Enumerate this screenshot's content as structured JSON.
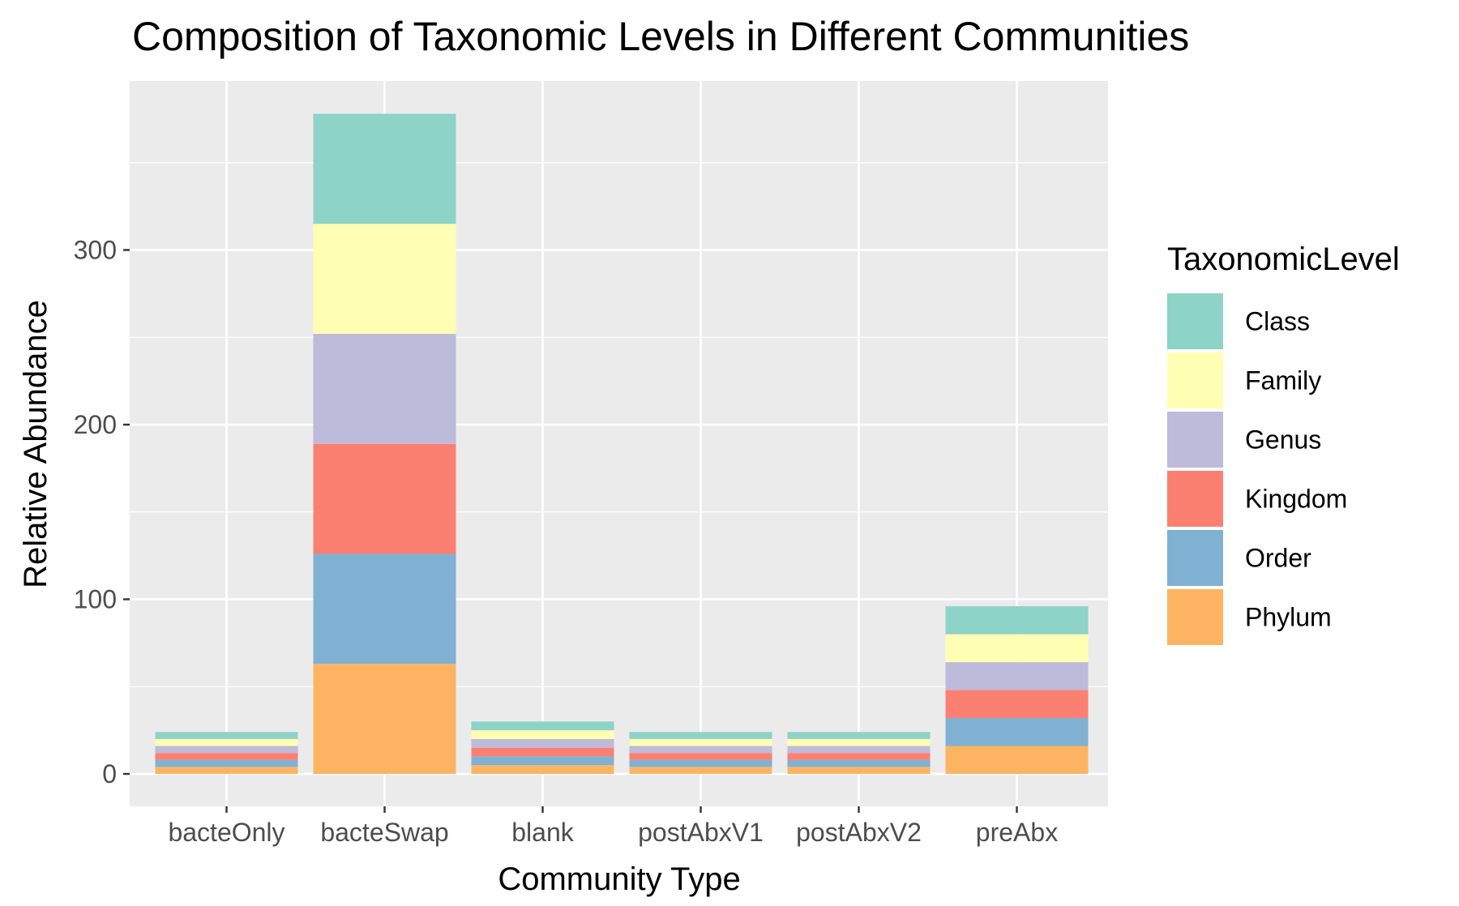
{
  "chart_data": {
    "type": "bar",
    "stacked": true,
    "title": "Composition of Taxonomic Levels in Different Communities",
    "xlabel": "Community Type",
    "ylabel": "Relative Abundance",
    "categories": [
      "bacteOnly",
      "bacteSwap",
      "blank",
      "postAbxV1",
      "postAbxV2",
      "preAbx"
    ],
    "y_ticks": [
      0,
      100,
      200,
      300
    ],
    "ylim": [
      -20,
      398
    ],
    "grid": true,
    "legend": {
      "title": "TaxonomicLevel",
      "position": "right"
    },
    "series": [
      {
        "name": "Phylum",
        "color": "#FDB462",
        "values": [
          4,
          63,
          5,
          4,
          4,
          16
        ]
      },
      {
        "name": "Order",
        "color": "#80B1D3",
        "values": [
          4,
          63,
          5,
          4,
          4,
          16
        ]
      },
      {
        "name": "Kingdom",
        "color": "#FB8072",
        "values": [
          4,
          63,
          5,
          4,
          4,
          16
        ]
      },
      {
        "name": "Genus",
        "color": "#BEBADA",
        "values": [
          4,
          63,
          5,
          4,
          4,
          16
        ]
      },
      {
        "name": "Family",
        "color": "#FFFFB3",
        "values": [
          4,
          63,
          5,
          4,
          4,
          16
        ]
      },
      {
        "name": "Class",
        "color": "#8DD3C7",
        "values": [
          4,
          63,
          5,
          4,
          4,
          16
        ]
      }
    ],
    "legend_order": [
      "Class",
      "Family",
      "Genus",
      "Kingdom",
      "Order",
      "Phylum"
    ]
  }
}
